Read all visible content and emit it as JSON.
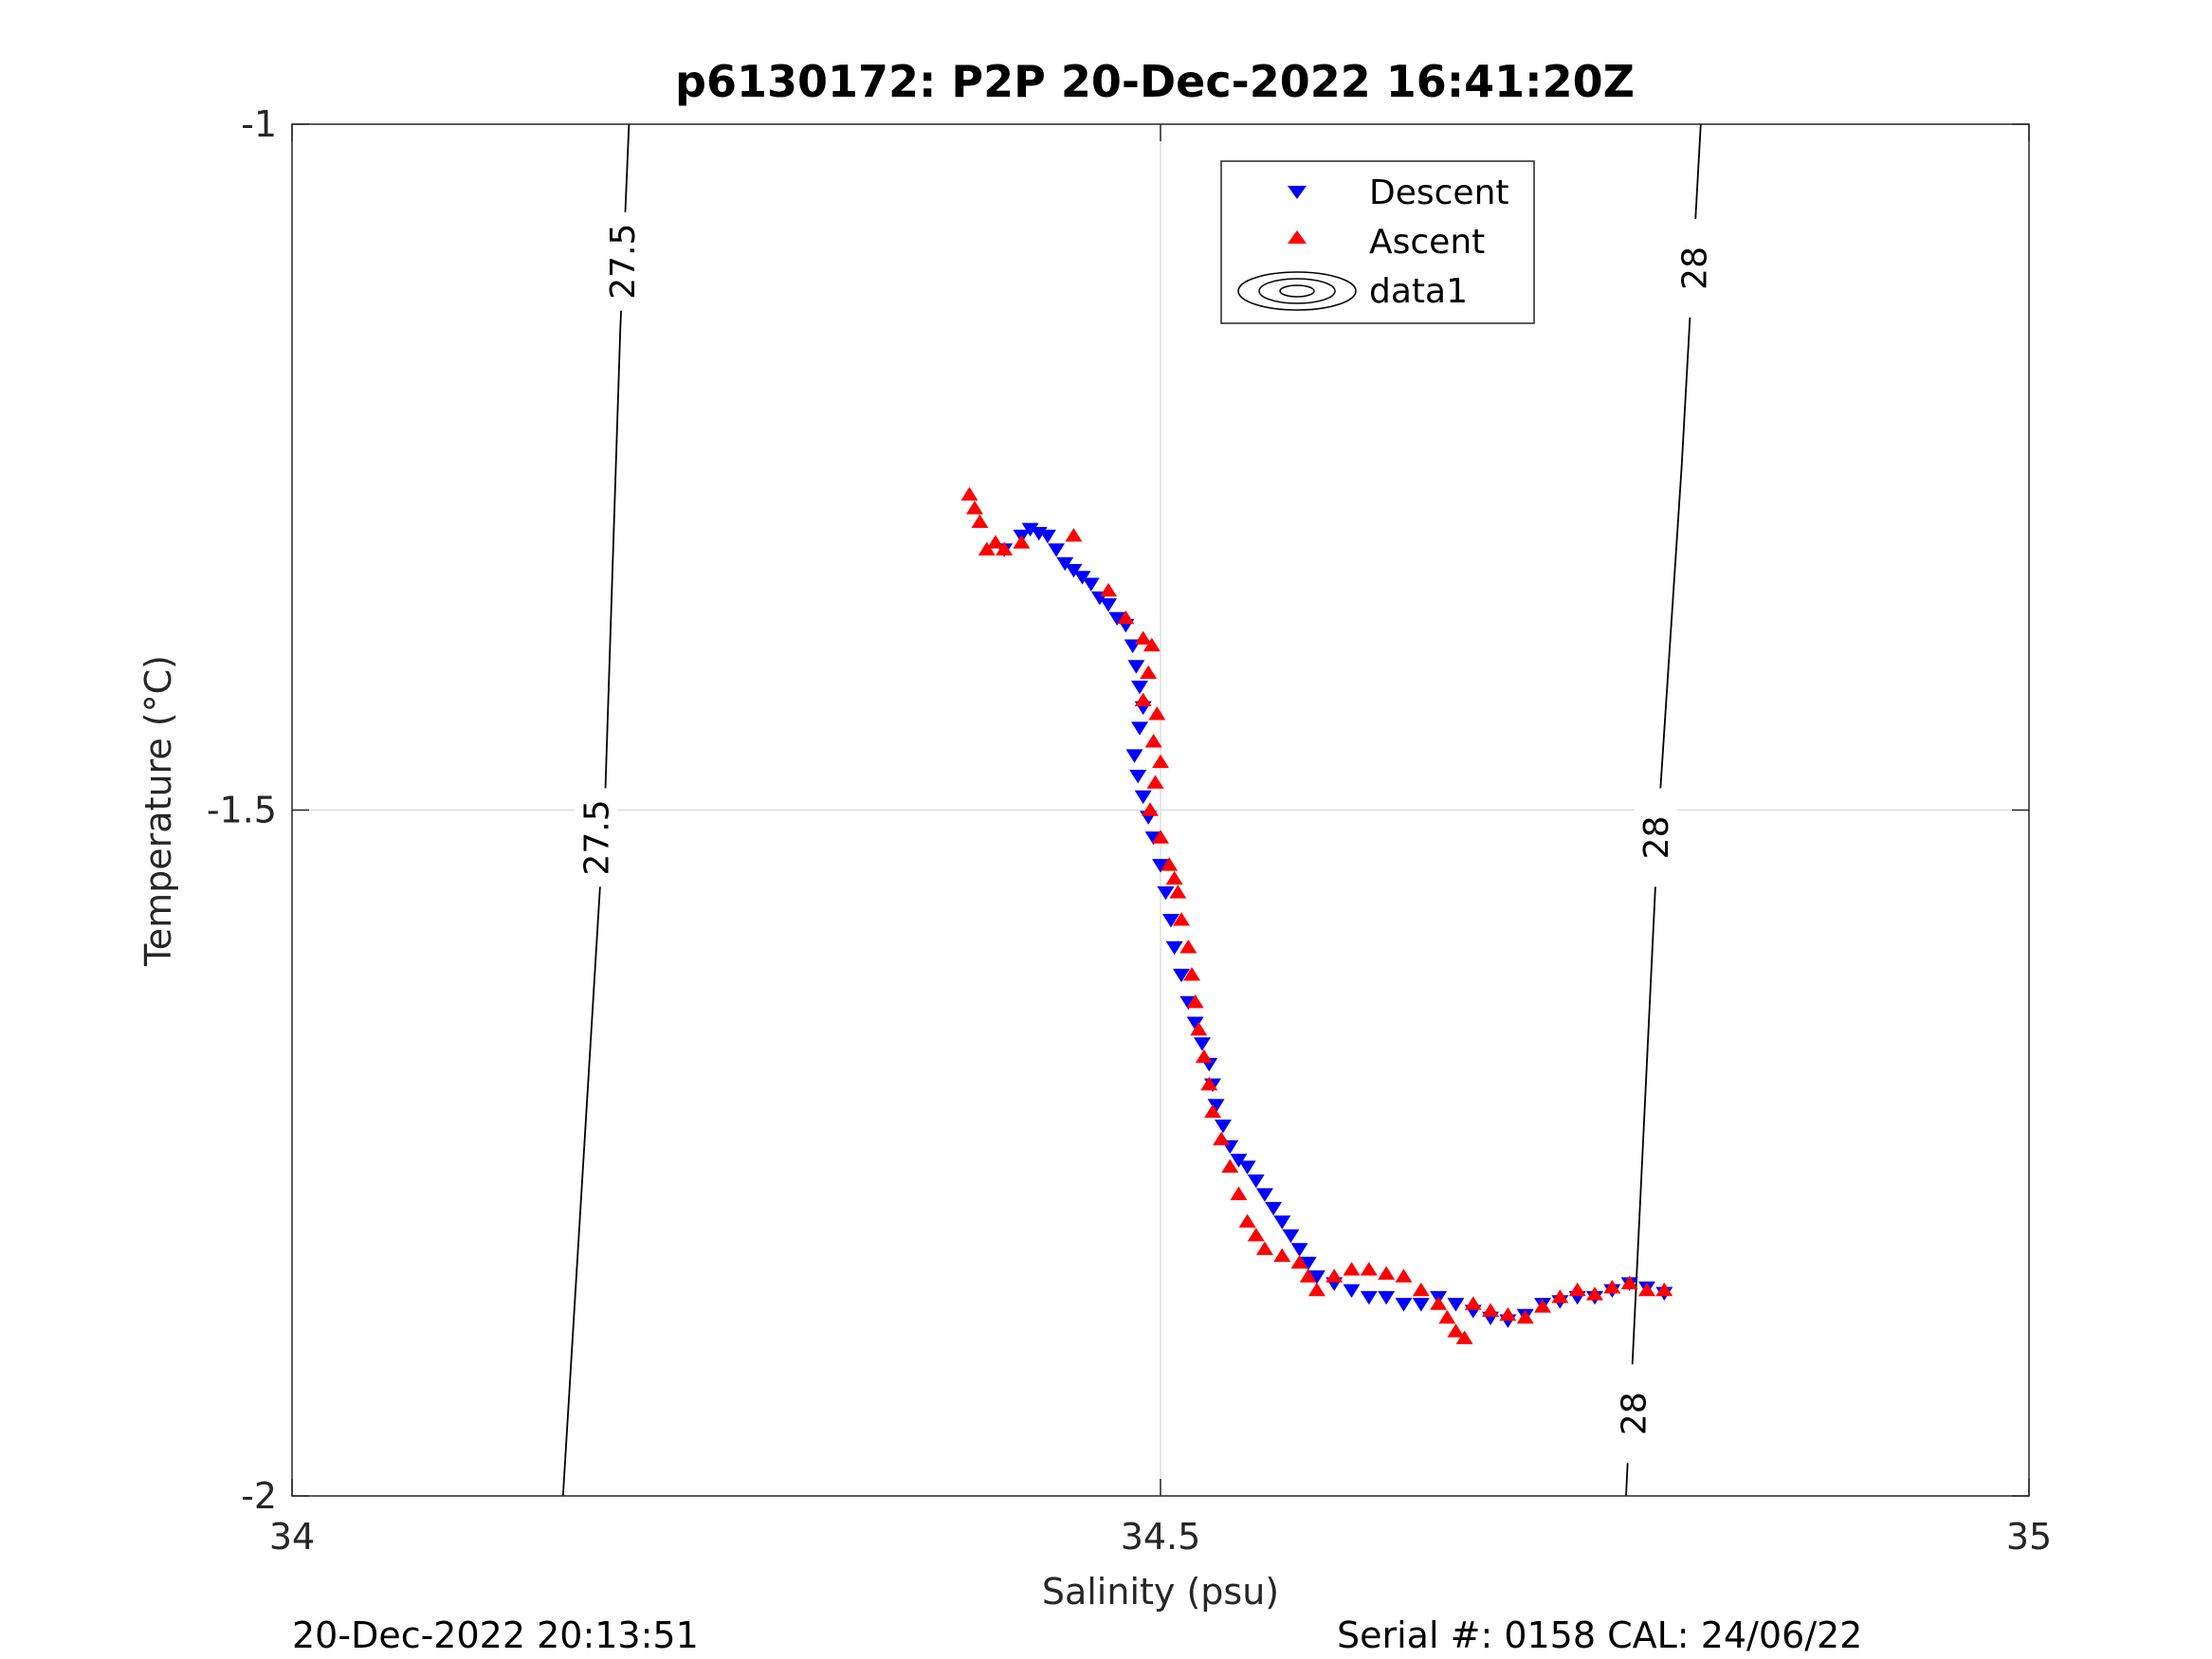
{
  "chart_data": {
    "type": "scatter",
    "title": "p6130172: P2P 20-Dec-2022 16:41:20Z",
    "xlabel": "Salinity (psu)",
    "ylabel": "Temperature (°C)",
    "xlim": [
      34,
      35
    ],
    "ylim": [
      -2,
      -1
    ],
    "x_ticks": [
      34,
      34.5,
      35
    ],
    "x_tick_labels": [
      "34",
      "34.5",
      "35"
    ],
    "y_ticks": [
      -2,
      -1.5,
      -1
    ],
    "y_tick_labels": [
      "-2",
      "-1.5",
      "-1"
    ],
    "grid": true,
    "legend_position": "top-center",
    "contours": [
      {
        "level": "27.5",
        "points": [
          [
            34.194,
            -1
          ],
          [
            34.189,
            -1.15
          ],
          [
            34.18,
            -1.5
          ],
          [
            34.156,
            -2
          ]
        ],
        "labels": [
          {
            "text": "27.5",
            "x": 34.19,
            "y": -1.1
          },
          {
            "text": "27.5",
            "x": 34.175,
            "y": -1.52
          }
        ]
      },
      {
        "level": "28",
        "points": [
          [
            34.811,
            -1
          ],
          [
            34.8,
            -1.25
          ],
          [
            34.787,
            -1.5
          ],
          [
            34.768,
            -2
          ]
        ],
        "labels": [
          {
            "text": "28",
            "x": 34.807,
            "y": -1.105
          },
          {
            "text": "28",
            "x": 34.785,
            "y": -1.52
          },
          {
            "text": "28",
            "x": 34.772,
            "y": -1.94
          }
        ]
      }
    ],
    "series": [
      {
        "name": "Descent",
        "marker": "triangle-down",
        "color": "#0000ff",
        "points": [
          [
            34.41,
            -1.31
          ],
          [
            34.42,
            -1.3
          ],
          [
            34.425,
            -1.295
          ],
          [
            34.43,
            -1.298
          ],
          [
            34.435,
            -1.3
          ],
          [
            34.44,
            -1.31
          ],
          [
            34.445,
            -1.32
          ],
          [
            34.45,
            -1.325
          ],
          [
            34.455,
            -1.33
          ],
          [
            34.46,
            -1.335
          ],
          [
            34.465,
            -1.345
          ],
          [
            34.47,
            -1.35
          ],
          [
            34.475,
            -1.36
          ],
          [
            34.48,
            -1.365
          ],
          [
            34.484,
            -1.38
          ],
          [
            34.486,
            -1.395
          ],
          [
            34.488,
            -1.41
          ],
          [
            34.49,
            -1.425
          ],
          [
            34.488,
            -1.44
          ],
          [
            34.485,
            -1.46
          ],
          [
            34.487,
            -1.475
          ],
          [
            34.49,
            -1.49
          ],
          [
            34.493,
            -1.505
          ],
          [
            34.496,
            -1.52
          ],
          [
            34.5,
            -1.54
          ],
          [
            34.503,
            -1.56
          ],
          [
            34.506,
            -1.58
          ],
          [
            34.508,
            -1.6
          ],
          [
            34.512,
            -1.62
          ],
          [
            34.516,
            -1.64
          ],
          [
            34.52,
            -1.655
          ],
          [
            34.524,
            -1.67
          ],
          [
            34.528,
            -1.685
          ],
          [
            34.53,
            -1.7
          ],
          [
            34.532,
            -1.715
          ],
          [
            34.536,
            -1.73
          ],
          [
            34.54,
            -1.745
          ],
          [
            34.545,
            -1.755
          ],
          [
            34.55,
            -1.76
          ],
          [
            34.555,
            -1.77
          ],
          [
            34.56,
            -1.78
          ],
          [
            34.565,
            -1.79
          ],
          [
            34.57,
            -1.8
          ],
          [
            34.575,
            -1.81
          ],
          [
            34.58,
            -1.82
          ],
          [
            34.585,
            -1.83
          ],
          [
            34.59,
            -1.84
          ],
          [
            34.6,
            -1.845
          ],
          [
            34.61,
            -1.85
          ],
          [
            34.62,
            -1.855
          ],
          [
            34.63,
            -1.855
          ],
          [
            34.64,
            -1.86
          ],
          [
            34.65,
            -1.86
          ],
          [
            34.66,
            -1.855
          ],
          [
            34.67,
            -1.86
          ],
          [
            34.68,
            -1.865
          ],
          [
            34.69,
            -1.87
          ],
          [
            34.7,
            -1.872
          ],
          [
            34.71,
            -1.868
          ],
          [
            34.72,
            -1.86
          ],
          [
            34.73,
            -1.858
          ],
          [
            34.74,
            -1.855
          ],
          [
            34.75,
            -1.855
          ],
          [
            34.76,
            -1.85
          ],
          [
            34.77,
            -1.845
          ],
          [
            34.78,
            -1.848
          ],
          [
            34.79,
            -1.852
          ]
        ]
      },
      {
        "name": "Ascent",
        "marker": "triangle-up",
        "color": "#ff0000",
        "points": [
          [
            34.39,
            -1.27
          ],
          [
            34.393,
            -1.28
          ],
          [
            34.396,
            -1.29
          ],
          [
            34.4,
            -1.31
          ],
          [
            34.405,
            -1.305
          ],
          [
            34.41,
            -1.31
          ],
          [
            34.42,
            -1.305
          ],
          [
            34.45,
            -1.3
          ],
          [
            34.47,
            -1.34
          ],
          [
            34.48,
            -1.36
          ],
          [
            34.49,
            -1.375
          ],
          [
            34.495,
            -1.38
          ],
          [
            34.493,
            -1.4
          ],
          [
            34.49,
            -1.42
          ],
          [
            34.498,
            -1.43
          ],
          [
            34.496,
            -1.45
          ],
          [
            34.5,
            -1.465
          ],
          [
            34.497,
            -1.48
          ],
          [
            34.494,
            -1.5
          ],
          [
            34.5,
            -1.52
          ],
          [
            34.505,
            -1.54
          ],
          [
            34.508,
            -1.55
          ],
          [
            34.51,
            -1.56
          ],
          [
            34.512,
            -1.58
          ],
          [
            34.516,
            -1.6
          ],
          [
            34.518,
            -1.62
          ],
          [
            34.52,
            -1.64
          ],
          [
            34.522,
            -1.66
          ],
          [
            34.525,
            -1.68
          ],
          [
            34.528,
            -1.7
          ],
          [
            34.53,
            -1.72
          ],
          [
            34.535,
            -1.74
          ],
          [
            34.54,
            -1.76
          ],
          [
            34.545,
            -1.78
          ],
          [
            34.55,
            -1.8
          ],
          [
            34.555,
            -1.81
          ],
          [
            34.56,
            -1.82
          ],
          [
            34.57,
            -1.825
          ],
          [
            34.58,
            -1.83
          ],
          [
            34.585,
            -1.84
          ],
          [
            34.59,
            -1.85
          ],
          [
            34.6,
            -1.84
          ],
          [
            34.61,
            -1.835
          ],
          [
            34.62,
            -1.835
          ],
          [
            34.63,
            -1.838
          ],
          [
            34.64,
            -1.84
          ],
          [
            34.65,
            -1.85
          ],
          [
            34.66,
            -1.86
          ],
          [
            34.665,
            -1.87
          ],
          [
            34.67,
            -1.88
          ],
          [
            34.675,
            -1.885
          ],
          [
            34.68,
            -1.86
          ],
          [
            34.69,
            -1.865
          ],
          [
            34.7,
            -1.868
          ],
          [
            34.71,
            -1.87
          ],
          [
            34.72,
            -1.862
          ],
          [
            34.73,
            -1.855
          ],
          [
            34.74,
            -1.85
          ],
          [
            34.75,
            -1.853
          ],
          [
            34.76,
            -1.848
          ],
          [
            34.77,
            -1.845
          ],
          [
            34.78,
            -1.85
          ],
          [
            34.79,
            -1.85
          ]
        ]
      },
      {
        "name": "data1",
        "marker": "contour-legend-only",
        "color": "#000000",
        "points": []
      }
    ]
  },
  "footer": {
    "left": "20-Dec-2022 20:13:51",
    "right": "Serial #: 0158  CAL: 24/06/22"
  }
}
